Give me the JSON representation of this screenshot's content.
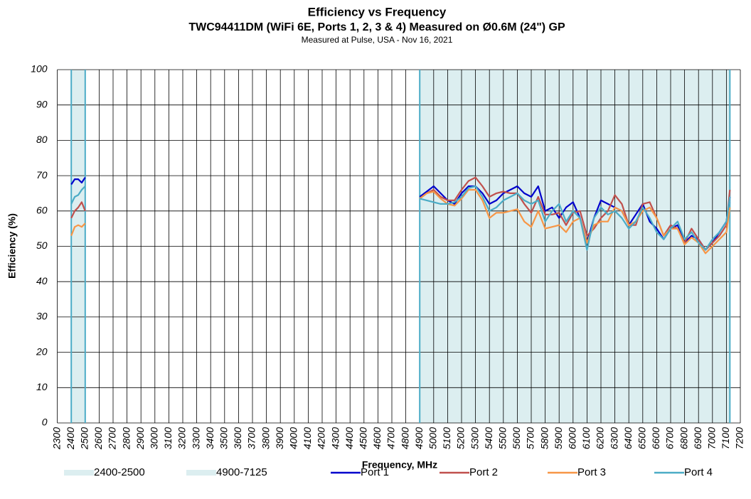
{
  "chart_data": {
    "type": "line",
    "title": "Efficiency vs Frequency",
    "subtitle": "TWC94411DM (WiFi 6E, Ports 1, 2, 3 & 4) Measured on Ø0.6M (24\") GP",
    "note": "Measured at Pulse, USA - Nov 16, 2021",
    "x_label": "Frequency, MHz",
    "y_label": "Efficiency (%)",
    "xlim": [
      2300,
      7200
    ],
    "ylim": [
      0,
      100
    ],
    "xticks": [
      2300,
      2400,
      2500,
      2600,
      2700,
      2800,
      2900,
      3000,
      3100,
      3200,
      3300,
      3400,
      3500,
      3600,
      3700,
      3800,
      3900,
      4000,
      4100,
      4200,
      4300,
      4400,
      4500,
      4600,
      4700,
      4800,
      4900,
      5000,
      5100,
      5200,
      5300,
      5400,
      5500,
      5600,
      5700,
      5800,
      5900,
      6000,
      6100,
      6200,
      6300,
      6400,
      6500,
      6600,
      6700,
      6800,
      6900,
      7000,
      7100,
      7200
    ],
    "yticks": [
      0,
      10,
      20,
      30,
      40,
      50,
      60,
      70,
      80,
      90,
      100
    ],
    "grid": true,
    "bands": [
      {
        "name": "2400-2500",
        "range": [
          2400,
          2500
        ],
        "color": "#dceef0",
        "edge_color": "#4bacc6"
      },
      {
        "name": "4900-7125",
        "range": [
          4900,
          7125
        ],
        "color": "#dceef0",
        "edge_color": "#4bacc6"
      }
    ],
    "x": [
      2400,
      2425,
      2450,
      2475,
      2500,
      3700,
      4900,
      4950,
      5000,
      5050,
      5100,
      5150,
      5200,
      5250,
      5300,
      5350,
      5400,
      5450,
      5500,
      5550,
      5600,
      5650,
      5700,
      5750,
      5800,
      5850,
      5900,
      5950,
      6000,
      6050,
      6100,
      6150,
      6200,
      6250,
      6300,
      6350,
      6400,
      6450,
      6500,
      6550,
      6600,
      6650,
      6700,
      6750,
      6800,
      6850,
      6900,
      6950,
      7000,
      7050,
      7100,
      7125
    ],
    "series": [
      {
        "name": "Port 1",
        "color": "#0000cc",
        "values": [
          67.5,
          69,
          69,
          68,
          69.5,
          null,
          64,
          65.5,
          67,
          65,
          63,
          62,
          65,
          67,
          67,
          65,
          62,
          63,
          65,
          66,
          67,
          65,
          64,
          67,
          60,
          61,
          58,
          61,
          62.5,
          58,
          51,
          58,
          63,
          62,
          61,
          60,
          56,
          59,
          62,
          57,
          55,
          52,
          55,
          56,
          51,
          53,
          52,
          49,
          51,
          54,
          57,
          64
        ]
      },
      {
        "name": "Port 2",
        "color": "#c0504d",
        "values": [
          58,
          60,
          61,
          62.5,
          60,
          null,
          63.5,
          65,
          66,
          64,
          63,
          63,
          66,
          68.5,
          69.5,
          67,
          64,
          65,
          65.5,
          65,
          65,
          62,
          59.5,
          64,
          59,
          59,
          59.5,
          56,
          59.5,
          60,
          53,
          55,
          58,
          60,
          64.5,
          62,
          56,
          56,
          62,
          62.5,
          58,
          53,
          56,
          55,
          51,
          55,
          52,
          49,
          51,
          53,
          56,
          66
        ]
      },
      {
        "name": "Port 3",
        "color": "#f79646",
        "values": [
          53,
          55.5,
          56,
          55.5,
          56.5,
          null,
          63.5,
          65,
          65.5,
          63.5,
          62,
          61.5,
          63.5,
          66,
          66,
          63,
          58,
          59.5,
          59.5,
          60,
          60.5,
          57,
          55.5,
          60,
          55,
          55.5,
          56,
          54,
          57,
          58,
          51,
          56,
          57,
          57,
          61,
          60,
          56,
          57,
          60,
          61,
          58,
          53,
          55,
          55,
          50.5,
          52.5,
          51,
          48,
          50,
          52,
          54,
          61
        ]
      },
      {
        "name": "Port 4",
        "color": "#4bacc6",
        "values": [
          62,
          64,
          64.5,
          66,
          67,
          null,
          63.5,
          63,
          62.5,
          62,
          62,
          62.5,
          64,
          66.5,
          67,
          64,
          60,
          61,
          63,
          64,
          65,
          63,
          62,
          63,
          57,
          60,
          62,
          57,
          60,
          58,
          49,
          58,
          61,
          59,
          60,
          58,
          55,
          57,
          61,
          58,
          54,
          52,
          55,
          57,
          52,
          54,
          51,
          49,
          52,
          54,
          57,
          64
        ]
      }
    ]
  }
}
